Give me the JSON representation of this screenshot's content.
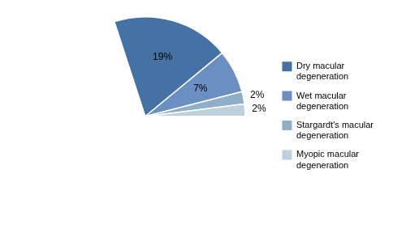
{
  "chart_data": {
    "type": "pie",
    "categories": [
      "Dry macular\ndegeneration",
      "Wet macular\ndegeneration",
      "Stargardt's macular\ndegeneration",
      "Myopic macular\ndegeneration",
      null
    ],
    "values": [
      19,
      7,
      2,
      2,
      70
    ],
    "colors": [
      "#4472a4",
      "#6b8fc2",
      "#8fafc8",
      "#bdd0dc",
      "#ffffff"
    ],
    "data_labels": true,
    "value_labels": [
      "19%",
      "7%",
      "2%",
      "2%",
      null
    ],
    "legend": "right"
  }
}
